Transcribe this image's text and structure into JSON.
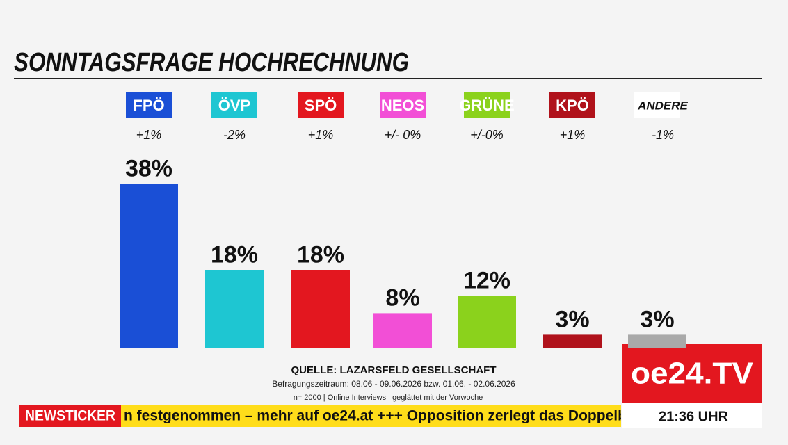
{
  "chart_data": {
    "type": "bar",
    "title": "SONNTAGSFRAGE HOCHRECHNUNG",
    "categories": [
      "FPÖ",
      "ÖVP",
      "SPÖ",
      "NEOS",
      "GRÜNE",
      "KPÖ",
      "ANDERE"
    ],
    "changes": [
      "+1%",
      "-2%",
      "+1%",
      "+/- 0%",
      "+/-0%",
      "+1%",
      "-1%"
    ],
    "values": [
      38,
      18,
      18,
      8,
      12,
      3,
      3
    ],
    "value_labels": [
      "38%",
      "18%",
      "18%",
      "8%",
      "12%",
      "3%",
      "3%"
    ],
    "colors": [
      "#1a4fd6",
      "#1ec6d2",
      "#e3171f",
      "#f24fd6",
      "#8bd21c",
      "#b0121b",
      "#a9a9a9"
    ],
    "label_colors": [
      "#1a4fd6",
      "#1ec6d2",
      "#e3171f",
      "#f24fd6",
      "#8bd21c",
      "#b0121b",
      "#ffffff"
    ],
    "label_text_colors": [
      "#ffffff",
      "#ffffff",
      "#ffffff",
      "#ffffff",
      "#ffffff",
      "#ffffff",
      "#111111"
    ]
  },
  "source": {
    "title": "QUELLE: LAZARSFELD GESELLSCHAFT",
    "period": "Befragungszeitraum: 08.06 - 09.06.2026 bzw. 01.06. - 02.06.2026",
    "method": "n= 2000 | Online Interviews | geglättet mit der Vorwoche"
  },
  "ticker": {
    "label": "NEWSTICKER",
    "text": "n festgenommen – mehr auf oe24.at +++ Opposition zerlegt das Doppelb"
  },
  "logo": "oe24.TV",
  "time": "21:36 UHR"
}
